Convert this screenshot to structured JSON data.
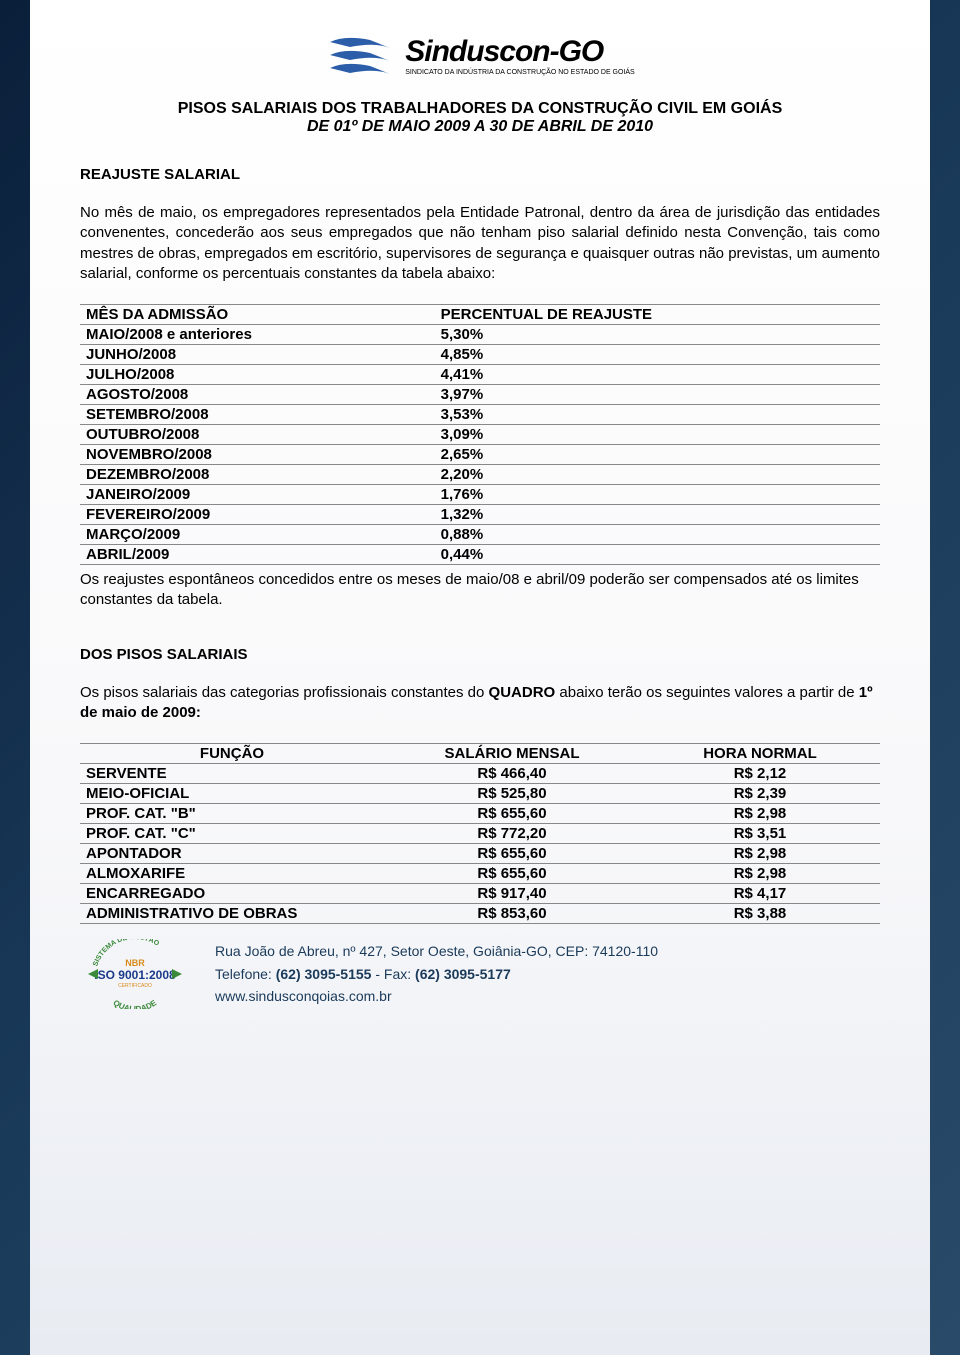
{
  "logo": {
    "main": "Sinduscon-GO",
    "sub": "SINDICATO DA INDÚSTRIA DA CONSTRUÇÃO NO ESTADO DE GOIÁS",
    "stripe_color": "#2b5da8",
    "text_color": "#000000"
  },
  "title": {
    "line1": "PISOS SALARIAIS DOS TRABALHADORES DA CONSTRUÇÃO CIVIL EM GOIÁS",
    "line2": "DE 01º DE MAIO 2009 A 30 DE ABRIL DE 2010"
  },
  "section1_heading": "REAJUSTE SALARIAL",
  "section1_body": "No mês de maio, os empregadores representados pela Entidade Patronal, dentro da área de jurisdição das entidades convenentes, concederão aos seus empregados que não tenham piso salarial definido nesta Convenção, tais como mestres de obras, empregados em escritório, supervisores de segurança e quaisquer outras não previstas, um aumento salarial, conforme os percentuais constantes da tabela abaixo:",
  "reajuste_table": {
    "type": "table",
    "columns": [
      "MÊS DA ADMISSÃO",
      "PERCENTUAL DE REAJUSTE"
    ],
    "rows": [
      [
        "MAIO/2008 e anteriores",
        "5,30%"
      ],
      [
        "JUNHO/2008",
        "4,85%"
      ],
      [
        "JULHO/2008",
        "4,41%"
      ],
      [
        "AGOSTO/2008",
        "3,97%"
      ],
      [
        "SETEMBRO/2008",
        "3,53%"
      ],
      [
        "OUTUBRO/2008",
        "3,09%"
      ],
      [
        "NOVEMBRO/2008",
        "2,65%"
      ],
      [
        "DEZEMBRO/2008",
        "2,20%"
      ],
      [
        "JANEIRO/2009",
        "1,76%"
      ],
      [
        "FEVEREIRO/2009",
        "1,32%"
      ],
      [
        "MARÇO/2009",
        "0,88%"
      ],
      [
        "ABRIL/2009",
        "0,44%"
      ]
    ],
    "border_color": "#888888",
    "font_size": 15
  },
  "reajuste_note": "Os reajustes espontâneos concedidos entre os meses de maio/08 e abril/09 poderão ser compensados até os limites constantes da tabela.",
  "section2_heading": "DOS PISOS SALARIAIS",
  "section2_intro_pre": "Os pisos salariais das categorias profissionais constantes do ",
  "section2_intro_bold1": "QUADRO",
  "section2_intro_mid": " abaixo terão os seguintes valores a partir de ",
  "section2_intro_bold2": "1º de maio de 2009:",
  "pisos_table": {
    "type": "table",
    "columns": [
      "FUNÇÃO",
      "SALÁRIO MENSAL",
      "HORA NORMAL"
    ],
    "rows": [
      [
        "SERVENTE",
        "R$ 466,40",
        "R$ 2,12"
      ],
      [
        "MEIO-OFICIAL",
        "R$ 525,80",
        "R$ 2,39"
      ],
      [
        "PROF. CAT. \"B\"",
        "R$ 655,60",
        "R$ 2,98"
      ],
      [
        "PROF. CAT. \"C\"",
        "R$ 772,20",
        "R$ 3,51"
      ],
      [
        "APONTADOR",
        "R$ 655,60",
        "R$ 2,98"
      ],
      [
        "ALMOXARIFE",
        "R$ 655,60",
        "R$ 2,98"
      ],
      [
        "ENCARREGADO",
        "R$ 917,40",
        "R$ 4,17"
      ],
      [
        "ADMINISTRATIVO DE OBRAS",
        "R$ 853,60",
        "R$ 3,88"
      ]
    ],
    "border_color": "#888888",
    "font_size": 15
  },
  "iso": {
    "top": "NBR",
    "main": "ISO 9001:2008",
    "cert": "CERTIFICADO",
    "arc_top": "SISTEMA DE GESTÃO",
    "arc_bottom": "QUALIDADE",
    "color_green": "#3a8a3a",
    "color_orange": "#d98a1a",
    "color_blue": "#1a3a8a"
  },
  "footer": {
    "address": "Rua João de Abreu, nº 427, Setor Oeste, Goiânia-GO, CEP: 74120-110",
    "tel_label": "Telefone: ",
    "tel": "(62) 3095-5155",
    "fax_label": " - Fax: ",
    "fax": "(62) 3095-5177",
    "site": "www.sindusconqoias.com.br",
    "text_color": "#1a3a5a"
  }
}
